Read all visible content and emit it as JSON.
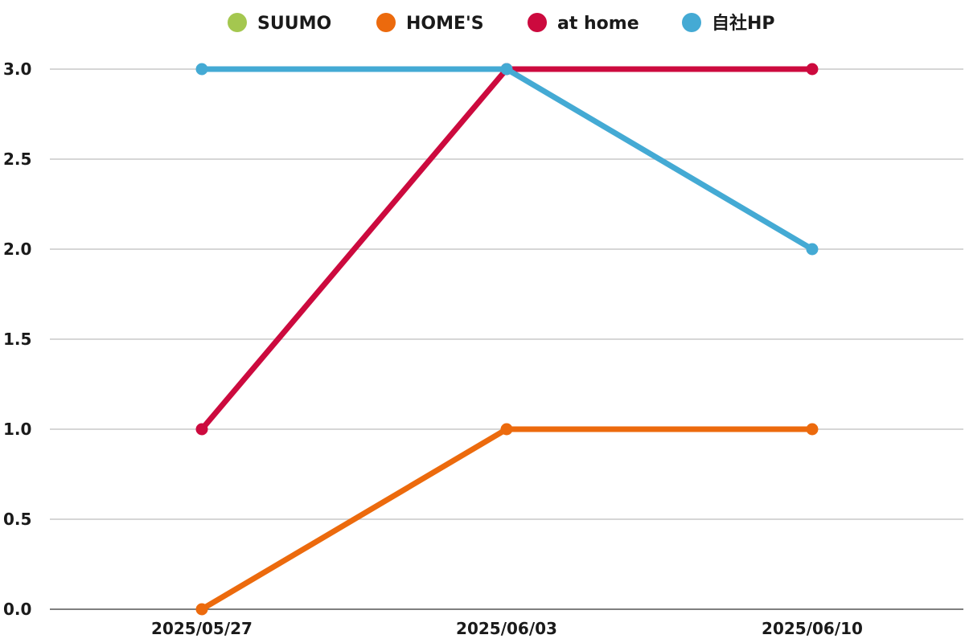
{
  "chart_data": {
    "type": "line",
    "title": "",
    "xlabel": "",
    "ylabel": "",
    "categories": [
      "2025/05/27",
      "2025/06/03",
      "2025/06/10"
    ],
    "ylim": [
      0,
      3
    ],
    "yticks": [
      "0.0",
      "0.5",
      "1.0",
      "1.5",
      "2.0",
      "2.5",
      "3.0"
    ],
    "ytick_values": [
      0,
      0.5,
      1,
      1.5,
      2,
      2.5,
      3
    ],
    "grid": true,
    "legend_position": "top",
    "series": [
      {
        "name": "SUUMO",
        "color": "#a4c74f",
        "values": [
          null,
          null,
          null
        ]
      },
      {
        "name": "HOME'S",
        "color": "#ec6a0d",
        "values": [
          0,
          1,
          1
        ]
      },
      {
        "name": "at home",
        "color": "#cc0a3e",
        "values": [
          1,
          3,
          3
        ]
      },
      {
        "name": "自社HP",
        "color": "#44aad4",
        "values": [
          3,
          3,
          2
        ]
      }
    ]
  }
}
